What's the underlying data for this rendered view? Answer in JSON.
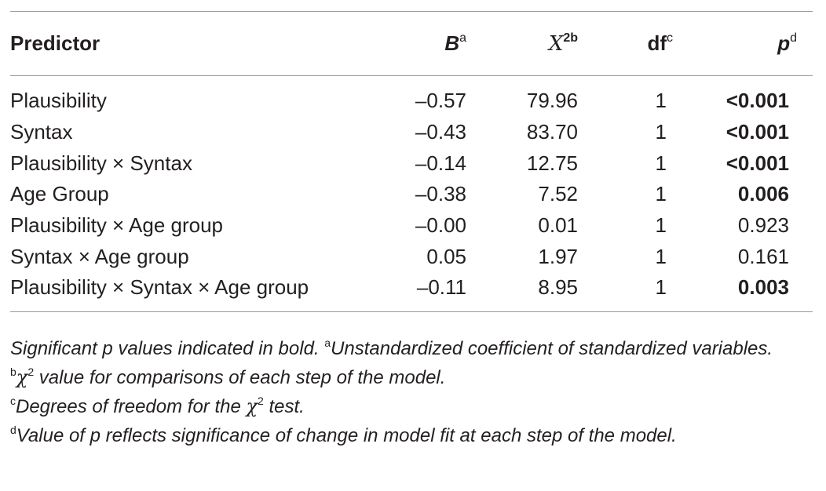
{
  "table": {
    "headers": {
      "predictor": "Predictor",
      "b": "B",
      "b_sup": "a",
      "x": "X",
      "x_sup": "2b",
      "df": "df",
      "df_sup": "c",
      "p": "p",
      "p_sup": "d"
    },
    "rows": [
      {
        "predictor": "Plausibility",
        "b": "–0.57",
        "x2": "79.96",
        "df": "1",
        "p": "<0.001",
        "p_bold": true
      },
      {
        "predictor": "Syntax",
        "b": "–0.43",
        "x2": "83.70",
        "df": "1",
        "p": "<0.001",
        "p_bold": true
      },
      {
        "predictor": "Plausibility × Syntax",
        "b": "–0.14",
        "x2": "12.75",
        "df": "1",
        "p": "<0.001",
        "p_bold": true
      },
      {
        "predictor": "Age Group",
        "b": "–0.38",
        "x2": "7.52",
        "df": "1",
        "p": "0.006",
        "p_bold": true
      },
      {
        "predictor": "Plausibility × Age group",
        "b": "–0.00",
        "x2": "0.01",
        "df": "1",
        "p": "0.923",
        "p_bold": false
      },
      {
        "predictor": "Syntax × Age group",
        "b": "0.05",
        "x2": "1.97",
        "df": "1",
        "p": "0.161",
        "p_bold": false
      },
      {
        "predictor": "Plausibility × Syntax × Age group",
        "b": "–0.11",
        "x2": "8.95",
        "df": "1",
        "p": "0.003",
        "p_bold": true
      }
    ]
  },
  "footnotes": {
    "line1_main": "Significant p values indicated in bold. ",
    "line1_sup": "a",
    "line1_rest": "Unstandardized coefficient of standardized variables.",
    "line2_sup": "b",
    "line2_chi": "χ",
    "line2_chi_sup": "2",
    "line2_rest": " value for comparisons of each step of the model.",
    "line3_sup": "c",
    "line3_main": "Degrees of freedom for the ",
    "line3_chi": "χ",
    "line3_chi_sup": "2",
    "line3_rest": " test.",
    "line4_sup": "d",
    "line4_main": "Value of p reflects significance of change in model fit at each step of the model."
  }
}
